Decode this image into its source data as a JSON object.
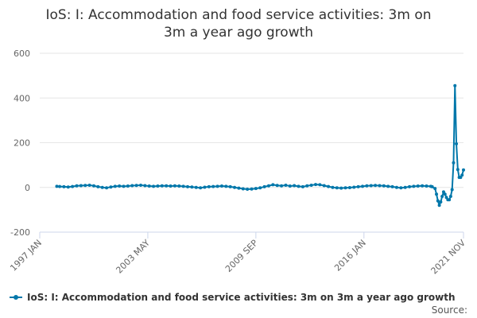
{
  "chart_data": {
    "type": "line",
    "title_lines": [
      "IoS: I: Accommodation and food service activities: 3m on",
      "3m a year ago growth"
    ],
    "xlabel": "",
    "ylabel": "",
    "ylim": [
      -200,
      600
    ],
    "y_ticks": [
      "-200",
      "0",
      "200",
      "400",
      "600"
    ],
    "x_tick_labels": [
      "1997 JAN",
      "2003 MAY",
      "2009 SEP",
      "2016 JAN",
      "2021 NOV"
    ],
    "grid": true,
    "legend_position": "bottom",
    "series": [
      {
        "name": "IoS: I: Accommodation and food service activities: 3m on 3m a year ago growth",
        "color": "#0077aa",
        "points": [
          [
            "1998-01",
            5
          ],
          [
            "1998-03",
            4
          ],
          [
            "1998-06",
            3
          ],
          [
            "1998-09",
            2
          ],
          [
            "1998-12",
            4
          ],
          [
            "1999-03",
            7
          ],
          [
            "1999-06",
            8
          ],
          [
            "1999-09",
            9
          ],
          [
            "1999-12",
            10
          ],
          [
            "2000-03",
            7
          ],
          [
            "2000-06",
            3
          ],
          [
            "2000-09",
            0
          ],
          [
            "2000-12",
            -2
          ],
          [
            "2001-03",
            2
          ],
          [
            "2001-06",
            5
          ],
          [
            "2001-09",
            6
          ],
          [
            "2001-12",
            5
          ],
          [
            "2002-03",
            6
          ],
          [
            "2002-06",
            8
          ],
          [
            "2002-09",
            9
          ],
          [
            "2002-12",
            10
          ],
          [
            "2003-03",
            8
          ],
          [
            "2003-06",
            6
          ],
          [
            "2003-09",
            5
          ],
          [
            "2003-12",
            6
          ],
          [
            "2004-03",
            7
          ],
          [
            "2004-06",
            7
          ],
          [
            "2004-09",
            6
          ],
          [
            "2004-12",
            7
          ],
          [
            "2005-03",
            6
          ],
          [
            "2005-06",
            5
          ],
          [
            "2005-09",
            3
          ],
          [
            "2005-12",
            2
          ],
          [
            "2006-03",
            0
          ],
          [
            "2006-06",
            -2
          ],
          [
            "2006-09",
            1
          ],
          [
            "2006-12",
            3
          ],
          [
            "2007-03",
            4
          ],
          [
            "2007-06",
            5
          ],
          [
            "2007-09",
            6
          ],
          [
            "2007-12",
            5
          ],
          [
            "2008-03",
            3
          ],
          [
            "2008-06",
            0
          ],
          [
            "2008-09",
            -3
          ],
          [
            "2008-12",
            -6
          ],
          [
            "2009-03",
            -8
          ],
          [
            "2009-06",
            -7
          ],
          [
            "2009-09",
            -5
          ],
          [
            "2009-12",
            -2
          ],
          [
            "2010-03",
            3
          ],
          [
            "2010-06",
            7
          ],
          [
            "2010-09",
            12
          ],
          [
            "2010-12",
            9
          ],
          [
            "2011-03",
            7
          ],
          [
            "2011-06",
            10
          ],
          [
            "2011-09",
            6
          ],
          [
            "2011-12",
            8
          ],
          [
            "2012-03",
            5
          ],
          [
            "2012-06",
            3
          ],
          [
            "2012-09",
            7
          ],
          [
            "2012-12",
            10
          ],
          [
            "2013-03",
            13
          ],
          [
            "2013-06",
            12
          ],
          [
            "2013-09",
            8
          ],
          [
            "2013-12",
            4
          ],
          [
            "2014-03",
            0
          ],
          [
            "2014-06",
            -2
          ],
          [
            "2014-09",
            -3
          ],
          [
            "2014-12",
            -2
          ],
          [
            "2015-03",
            -1
          ],
          [
            "2015-06",
            1
          ],
          [
            "2015-09",
            3
          ],
          [
            "2015-12",
            5
          ],
          [
            "2016-03",
            7
          ],
          [
            "2016-06",
            8
          ],
          [
            "2016-09",
            9
          ],
          [
            "2016-12",
            8
          ],
          [
            "2017-03",
            7
          ],
          [
            "2017-06",
            5
          ],
          [
            "2017-09",
            3
          ],
          [
            "2017-12",
            0
          ],
          [
            "2018-03",
            -2
          ],
          [
            "2018-06",
            0
          ],
          [
            "2018-09",
            3
          ],
          [
            "2018-12",
            5
          ],
          [
            "2019-03",
            6
          ],
          [
            "2019-06",
            7
          ],
          [
            "2019-09",
            6
          ],
          [
            "2019-12",
            5
          ],
          [
            "2020-01",
            3
          ],
          [
            "2020-03",
            -5
          ],
          [
            "2020-04",
            -30
          ],
          [
            "2020-05",
            -60
          ],
          [
            "2020-06",
            -80
          ],
          [
            "2020-07",
            -65
          ],
          [
            "2020-08",
            -40
          ],
          [
            "2020-09",
            -20
          ],
          [
            "2020-10",
            -30
          ],
          [
            "2020-11",
            -45
          ],
          [
            "2020-12",
            -55
          ],
          [
            "2021-01",
            -55
          ],
          [
            "2021-02",
            -40
          ],
          [
            "2021-03",
            -10
          ],
          [
            "2021-04",
            110
          ],
          [
            "2021-05",
            455
          ],
          [
            "2021-06",
            195
          ],
          [
            "2021-07",
            80
          ],
          [
            "2021-08",
            45
          ],
          [
            "2021-09",
            45
          ],
          [
            "2021-10",
            55
          ],
          [
            "2021-11",
            78
          ]
        ]
      }
    ],
    "source_label": "Source:"
  }
}
